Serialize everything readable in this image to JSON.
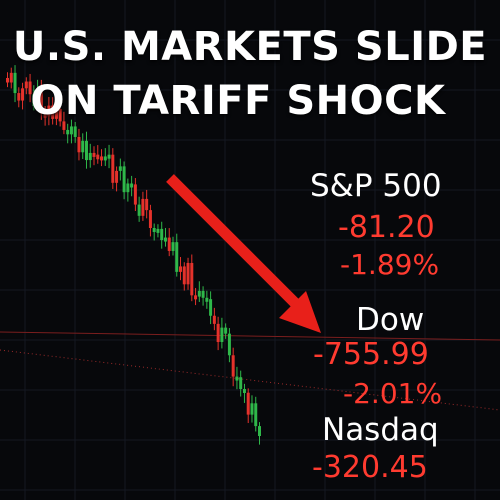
{
  "headline": {
    "line1": "U.S. MARKETS SLIDE",
    "line2": "ON TARIFF SHOCK"
  },
  "indices": [
    {
      "name": "S&P 500",
      "change": "-81.20",
      "percent": "-1.89%"
    },
    {
      "name": "Dow",
      "change": "-755.99",
      "percent": "-2.01%"
    },
    {
      "name": "Nasdaq",
      "change": "-320.45",
      "percent": ""
    }
  ],
  "colors": {
    "background": "#07080b",
    "up": "#2fb84a",
    "down": "#e5322b",
    "arrow": "#e8201a",
    "text": "#ffffff",
    "negative_text": "#ff3b30"
  }
}
